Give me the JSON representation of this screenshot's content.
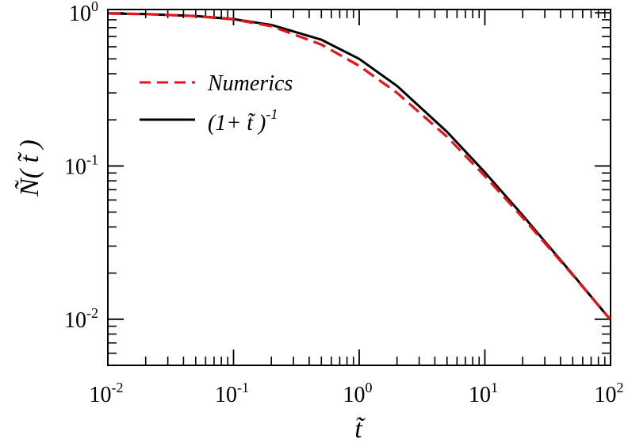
{
  "chart_data": {
    "type": "line",
    "title": "",
    "xlabel": "t̃",
    "ylabel": "Ñ( t̃ )",
    "x_scale": "log",
    "y_scale": "log",
    "xlim": [
      0.01,
      100
    ],
    "ylim": [
      0.005,
      1.05
    ],
    "grid": false,
    "legend_position": "upper-left",
    "x_ticks": [
      {
        "base": "10",
        "exp": "-2",
        "value": 0.01
      },
      {
        "base": "10",
        "exp": "-1",
        "value": 0.1
      },
      {
        "base": "10",
        "exp": "0",
        "value": 1
      },
      {
        "base": "10",
        "exp": "1",
        "value": 10
      },
      {
        "base": "10",
        "exp": "2",
        "value": 100
      }
    ],
    "y_ticks": [
      {
        "base": "10",
        "exp": "-2",
        "value": 0.01
      },
      {
        "base": "10",
        "exp": "-1",
        "value": 0.1
      },
      {
        "base": "10",
        "exp": "0",
        "value": 1
      }
    ],
    "x": [
      0.01,
      0.02,
      0.05,
      0.1,
      0.2,
      0.5,
      1,
      2,
      5,
      10,
      20,
      50,
      100
    ],
    "series": [
      {
        "name": "Numerics",
        "color": "#e8141c",
        "style": "dashed",
        "values": [
          0.99,
          0.98,
          0.951,
          0.905,
          0.817,
          0.62,
          0.45,
          0.3,
          0.155,
          0.086,
          0.046,
          0.0194,
          0.0099
        ]
      },
      {
        "name": "(1+ t̃ )⁻¹",
        "color": "#000000",
        "style": "solid",
        "values": [
          0.99,
          0.98,
          0.952,
          0.909,
          0.833,
          0.667,
          0.5,
          0.333,
          0.167,
          0.0909,
          0.0476,
          0.0196,
          0.0099
        ]
      }
    ],
    "legend": [
      {
        "label": "Numerics"
      },
      {
        "label_main": "(1+ t̃ )",
        "label_sup": "-1"
      }
    ]
  }
}
